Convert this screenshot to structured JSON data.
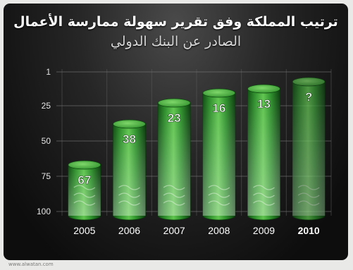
{
  "chart_data": {
    "type": "bar",
    "title": "ترتيب المملكة وفق تقرير سهولة ممارسة الأعمال",
    "subtitle": "الصادر عن البنك الدولي",
    "categories": [
      "2005",
      "2006",
      "2007",
      "2008",
      "2009",
      "2010"
    ],
    "values": [
      67,
      38,
      23,
      16,
      13,
      null
    ],
    "value_labels": [
      "67",
      "38",
      "23",
      "16",
      "13",
      "?"
    ],
    "highlight_category": "2010",
    "yticks": [
      "1",
      "25",
      "50",
      "75",
      "100"
    ],
    "ylim": [
      1,
      100
    ],
    "y_inverted": true,
    "bar_color": "#2f8f2c",
    "grid": true,
    "xlabel": "",
    "ylabel": ""
  },
  "watermark": "www.alwatan.com"
}
